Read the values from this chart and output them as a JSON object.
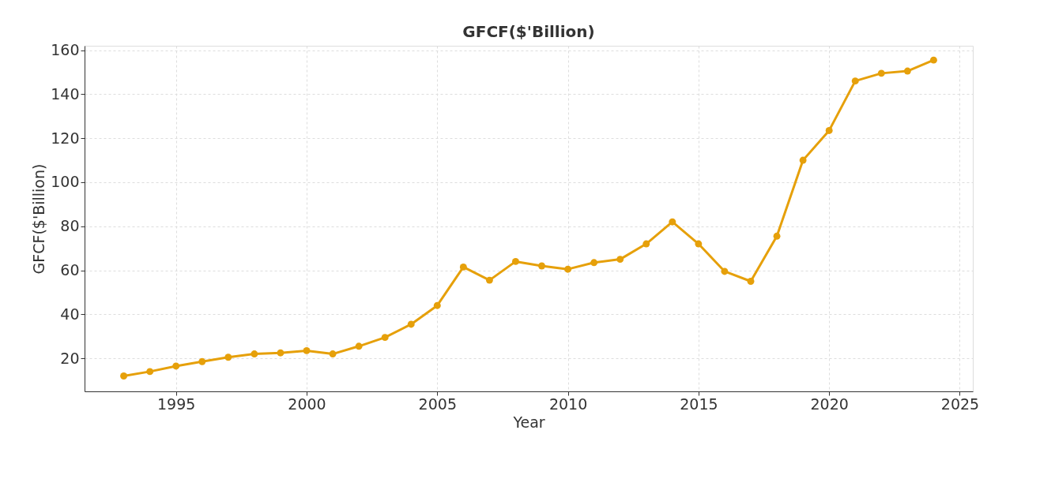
{
  "chart_data": {
    "type": "line",
    "title": "GFCF($'Billion)",
    "xlabel": "Year",
    "ylabel": "GFCF($'Billion)",
    "x": [
      1993,
      1994,
      1995,
      1996,
      1997,
      1998,
      1999,
      2000,
      2001,
      2002,
      2003,
      2004,
      2005,
      2006,
      2007,
      2008,
      2009,
      2010,
      2011,
      2012,
      2013,
      2014,
      2015,
      2016,
      2017,
      2018,
      2019,
      2020,
      2021,
      2022,
      2023,
      2024
    ],
    "series": [
      {
        "color": "#e6a00a",
        "values": [
          12,
          14,
          16.5,
          18.5,
          20.5,
          22,
          22.5,
          23.5,
          22,
          25.5,
          29.5,
          35.5,
          44,
          61.5,
          55.5,
          64,
          62,
          60.5,
          63.5,
          65,
          72,
          82,
          72,
          59.5,
          55,
          75.5,
          110,
          123.5,
          146,
          149.5,
          150.5,
          155.5
        ]
      }
    ],
    "xlim": [
      1991.5,
      2025.5
    ],
    "xticks": [
      1995,
      2000,
      2005,
      2010,
      2015,
      2020,
      2025
    ],
    "ylim": [
      5,
      162
    ],
    "yticks": [
      20,
      40,
      60,
      80,
      100,
      120,
      140,
      160
    ],
    "grid": true,
    "marker": "circle",
    "line_style": "solid"
  }
}
